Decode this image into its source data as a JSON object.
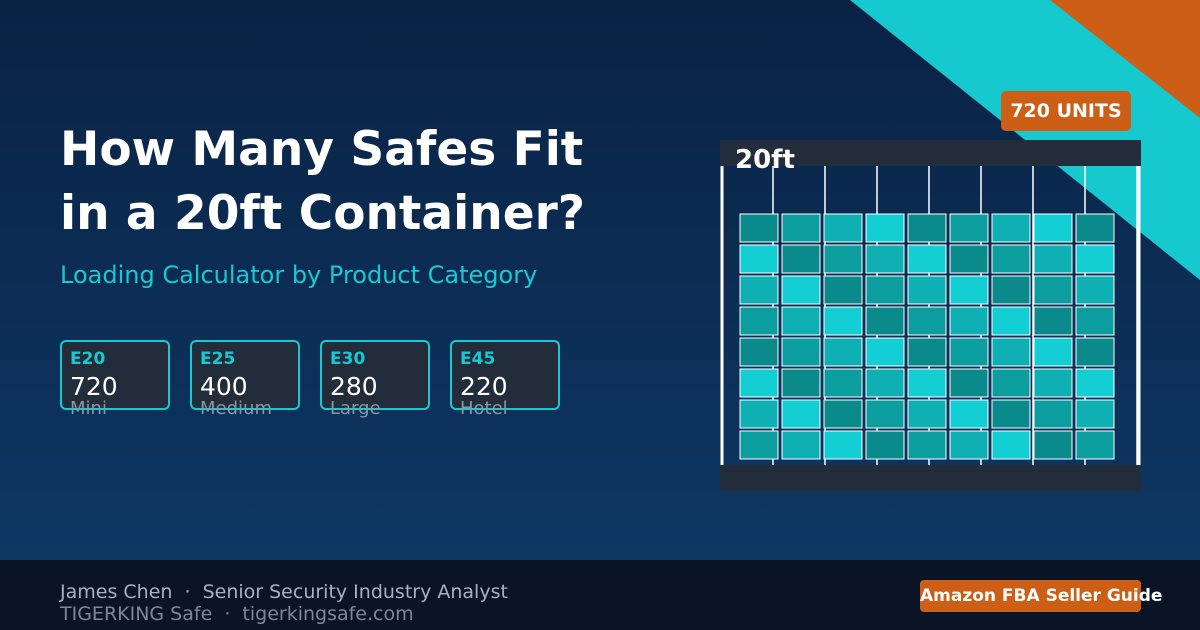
{
  "headline": {
    "line1": "How Many Safes Fit",
    "line2": "in a 20ft Container?",
    "subtitle": "Loading Calculator by Product Category"
  },
  "models": [
    {
      "code": "E20",
      "count": "720",
      "label": "Mini"
    },
    {
      "code": "E25",
      "count": "400",
      "label": "Medium"
    },
    {
      "code": "E30",
      "count": "280",
      "label": "Large"
    },
    {
      "code": "E45",
      "count": "220",
      "label": "Hotel"
    }
  ],
  "container": {
    "label": "20ft",
    "units_badge": "720 UNITS",
    "rows": 8,
    "cols": 9
  },
  "footer": {
    "author": "James Chen",
    "separator": "·",
    "role": "Senior Security Industry Analyst",
    "brand": "TIGERKING Safe",
    "website": "tigerkingsafe.com",
    "guide_badge": "Amazon FBA Seller Guide"
  },
  "colors": {
    "accent_cyan": "#19c9d1",
    "accent_orange": "#cd5e16",
    "box_teal_1": "#0a8a8a",
    "box_teal_2": "#13cfd3",
    "box_teal_3": "#0fb0b3",
    "box_teal_4": "#0c9d9e"
  }
}
